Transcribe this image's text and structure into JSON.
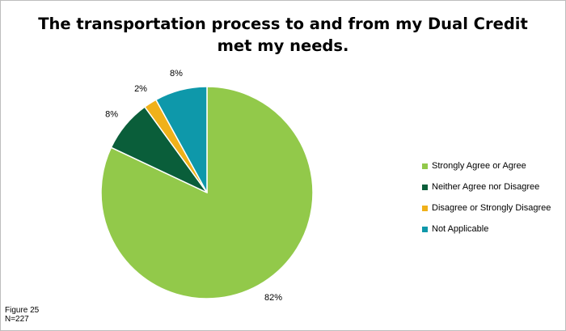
{
  "chart_data": {
    "type": "pie",
    "title_line1": "The transportation process to and from my Dual Credit",
    "title_line2": "met my needs.",
    "categories": [
      "Strongly Agree or Agree",
      "Neither Agree nor Disagree",
      "Disagree or Strongly Disagree",
      "Not Applicable"
    ],
    "values": [
      82,
      8,
      2,
      8
    ],
    "value_labels": [
      "82%",
      "8%",
      "2%",
      "8%"
    ],
    "colors": [
      "#92c94a",
      "#0a5e3a",
      "#f0b11a",
      "#0e98aa"
    ],
    "legend_position": "right"
  },
  "notes": {
    "figure": "Figure 25",
    "n": "N=227"
  }
}
